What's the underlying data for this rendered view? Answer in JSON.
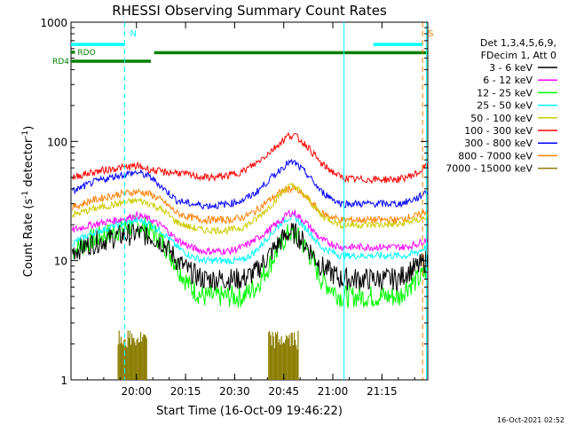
{
  "chart_data": {
    "type": "line",
    "title": "RHESSI Observing Summary Count Rates",
    "xlabel": "Start Time (16-Oct-09 19:46:22)",
    "ylabel_main": "Count Rate (s",
    "ylabel_sup1": "-1",
    "ylabel_mid": " detector",
    "ylabel_sup2": "-1",
    "ylabel_end": ")",
    "yscale": "log",
    "xlim_minutes": [
      -6.4,
      102.6
    ],
    "ylim": [
      1,
      1000
    ],
    "x_ticks": [
      {
        "label": "20:00",
        "minutes": 13.6
      },
      {
        "label": "20:15",
        "minutes": 28.6
      },
      {
        "label": "20:30",
        "minutes": 43.6
      },
      {
        "label": "20:45",
        "minutes": 58.6
      },
      {
        "label": "21:00",
        "minutes": 73.6
      },
      {
        "label": "21:15",
        "minutes": 88.6
      }
    ],
    "y_ticks": [
      {
        "label": "1",
        "value": 1
      },
      {
        "label": "10",
        "value": 10
      },
      {
        "label": "100",
        "value": 100
      },
      {
        "label": "1000",
        "value": 1000
      }
    ],
    "legend_header": [
      "Det 1,3,4,5,6,9,",
      "FDecim 1, Att 0"
    ],
    "legend_entries": [
      {
        "label": "3 - 6 keV",
        "color": "#000000"
      },
      {
        "label": "6 - 12 keV",
        "color": "#ff00ff"
      },
      {
        "label": "12 - 25 keV",
        "color": "#00ff00"
      },
      {
        "label": "25 - 50 keV",
        "color": "#00ffff"
      },
      {
        "label": "50 - 100 keV",
        "color": "#cccc00"
      },
      {
        "label": "100 - 300 keV",
        "color": "#ff0000"
      },
      {
        "label": "300 - 800 keV",
        "color": "#0000ff"
      },
      {
        "label": "800 - 7000 keV",
        "color": "#ff8000"
      },
      {
        "label": "7000 - 15000 keV",
        "color": "#8b7d00"
      }
    ],
    "series": [
      {
        "name": "3 - 6 keV",
        "color": "#000000",
        "x": [
          -6,
          0,
          8,
          14,
          18,
          22,
          26,
          30,
          34,
          38,
          42,
          46,
          50,
          54,
          58,
          60,
          62,
          66,
          70,
          76,
          80,
          86,
          90,
          94,
          96,
          100,
          102
        ],
        "y": [
          12,
          14,
          16,
          17,
          16,
          14,
          10,
          8,
          7,
          7,
          7,
          7,
          8,
          11,
          15,
          17,
          17,
          13,
          9,
          7,
          7,
          7,
          7,
          7,
          8,
          9,
          10
        ]
      },
      {
        "name": "6 - 12 keV",
        "color": "#ff00ff",
        "x": [
          -6,
          0,
          8,
          14,
          18,
          22,
          26,
          30,
          34,
          38,
          42,
          46,
          50,
          54,
          58,
          60,
          62,
          66,
          70,
          76,
          80,
          86,
          90,
          94,
          96,
          100,
          102
        ],
        "y": [
          18,
          20,
          22,
          24,
          22,
          19,
          15,
          13,
          12,
          12,
          12,
          13,
          15,
          18,
          22,
          25,
          25,
          20,
          15,
          13,
          13,
          13,
          13,
          13,
          13,
          14,
          15
        ]
      },
      {
        "name": "12 - 25 keV",
        "color": "#00ff00",
        "x": [
          -6,
          0,
          8,
          14,
          18,
          22,
          26,
          30,
          34,
          38,
          42,
          46,
          50,
          54,
          58,
          60,
          62,
          66,
          70,
          76,
          80,
          86,
          90,
          94,
          96,
          100,
          102
        ],
        "y": [
          12,
          15,
          18,
          20,
          18,
          14,
          9,
          6,
          5,
          5,
          5,
          5,
          6,
          9,
          14,
          17,
          17,
          12,
          7,
          5,
          5,
          5,
          5,
          5,
          6,
          7,
          8
        ]
      },
      {
        "name": "25 - 50 keV",
        "color": "#00ffff",
        "x": [
          -6,
          0,
          8,
          14,
          18,
          22,
          26,
          30,
          34,
          38,
          42,
          46,
          50,
          54,
          58,
          60,
          62,
          66,
          70,
          76,
          80,
          86,
          90,
          94,
          96,
          100,
          102
        ],
        "y": [
          14,
          17,
          20,
          22,
          20,
          17,
          13,
          11,
          10,
          10,
          10,
          10,
          12,
          16,
          21,
          23,
          23,
          18,
          13,
          11,
          11,
          11,
          11,
          11,
          11,
          12,
          13
        ]
      },
      {
        "name": "50 - 100 keV",
        "color": "#cccc00",
        "x": [
          -6,
          0,
          8,
          14,
          18,
          22,
          26,
          30,
          34,
          38,
          42,
          46,
          50,
          54,
          58,
          60,
          62,
          66,
          70,
          76,
          80,
          86,
          90,
          94,
          96,
          100,
          102
        ],
        "y": [
          24,
          27,
          30,
          32,
          30,
          26,
          21,
          19,
          18,
          18,
          18,
          19,
          22,
          28,
          37,
          42,
          42,
          33,
          24,
          20,
          20,
          20,
          20,
          20,
          21,
          22,
          23
        ]
      },
      {
        "name": "100 - 300 keV",
        "color": "#ff0000",
        "x": [
          -6,
          0,
          8,
          14,
          18,
          22,
          26,
          30,
          34,
          38,
          42,
          46,
          50,
          54,
          58,
          60,
          62,
          66,
          70,
          76,
          80,
          86,
          90,
          94,
          96,
          100,
          102
        ],
        "y": [
          50,
          55,
          60,
          62,
          58,
          55,
          55,
          52,
          50,
          50,
          52,
          56,
          65,
          80,
          100,
          112,
          112,
          90,
          65,
          50,
          48,
          48,
          48,
          48,
          50,
          55,
          62
        ]
      },
      {
        "name": "300 - 800 keV",
        "color": "#0000ff",
        "x": [
          -6,
          0,
          8,
          14,
          18,
          22,
          26,
          30,
          34,
          38,
          42,
          46,
          50,
          54,
          58,
          60,
          62,
          66,
          70,
          76,
          80,
          86,
          90,
          94,
          96,
          100,
          102
        ],
        "y": [
          38,
          45,
          52,
          55,
          50,
          40,
          32,
          30,
          29,
          29,
          30,
          32,
          37,
          47,
          60,
          66,
          66,
          52,
          38,
          30,
          30,
          30,
          30,
          30,
          31,
          34,
          38
        ]
      },
      {
        "name": "800 - 7000 keV",
        "color": "#ff8000",
        "x": [
          -6,
          0,
          8,
          14,
          18,
          22,
          26,
          30,
          34,
          38,
          42,
          46,
          50,
          54,
          58,
          60,
          62,
          66,
          70,
          76,
          80,
          86,
          90,
          94,
          96,
          100,
          102
        ],
        "y": [
          28,
          32,
          36,
          38,
          36,
          31,
          25,
          23,
          22,
          22,
          22,
          23,
          26,
          32,
          38,
          40,
          40,
          33,
          25,
          22,
          22,
          22,
          22,
          22,
          23,
          24,
          26
        ]
      }
    ],
    "bursts": [
      {
        "name": "7000 - 15000 keV",
        "color": "#8b7d00",
        "x_range": [
          8,
          17
        ],
        "peak": 2.6
      },
      {
        "name": "7000 - 15000 keV",
        "color": "#8b7d00",
        "x_range": [
          54,
          63
        ],
        "peak": 2.6
      }
    ],
    "flag_bars": [
      {
        "label": "",
        "color": "#00ffff",
        "level": 650,
        "x_start": -6.4,
        "x_end": 10
      },
      {
        "label": "RDO",
        "color": "#008000",
        "level": 560,
        "x_start": -6.4,
        "x_end": -5.2
      },
      {
        "label": "",
        "color": "#008000",
        "level": 555,
        "x_start": 19,
        "x_end": 102.6
      },
      {
        "label": "RD4",
        "color": "#008000",
        "level": 470,
        "x_start": -6.4,
        "x_end": 18
      },
      {
        "label": "",
        "color": "#00ffff",
        "level": 650,
        "x_start": 86,
        "x_end": 101
      }
    ],
    "vertical_markers": [
      {
        "label": "N",
        "color": "#00ffff",
        "minutes": 10,
        "style": "dashed"
      },
      {
        "label": "",
        "color": "#00ffff",
        "minutes": 77,
        "style": "solid"
      },
      {
        "label": "S",
        "color": "#ff8000",
        "minutes": 101,
        "style": "dashed"
      },
      {
        "label": "",
        "color": "#00ffff",
        "minutes": 102.2,
        "style": "solid"
      }
    ],
    "legend_position": "right"
  },
  "footer": {
    "timestamp": "16-Oct-2021 02:52"
  }
}
